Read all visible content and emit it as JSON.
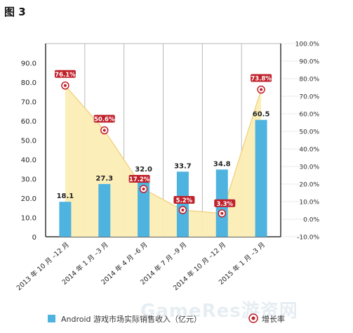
{
  "figure_label": "图 3",
  "watermark": "GameRes游资网",
  "colors": {
    "bar": "#4fb3e0",
    "area_fill": "#fbedb5",
    "area_line": "#f0cf7a",
    "rate_label_bg": "#c0202a",
    "marker": "#c0202a"
  },
  "chart_data": {
    "type": "bar",
    "title": "",
    "categories": [
      "2013 年 10 月 –12 月",
      "2014 年 1 月 –3 月",
      "2014 年 4 月 –6 月",
      "2014 年 7 月 –9 月",
      "2014 年 10 月 –12 月",
      "2015 年 1 月 –3 月"
    ],
    "series": [
      {
        "name": "Android 游戏市场实际销售收入（亿元）",
        "type": "bar",
        "axis": "left",
        "values": [
          18.1,
          27.3,
          32.0,
          33.7,
          34.8,
          60.5
        ],
        "labels": [
          "18.1",
          "27.3",
          "32.0",
          "33.7",
          "34.8",
          "60.5"
        ]
      },
      {
        "name": "增长率",
        "type": "area-line",
        "axis": "right",
        "values": [
          76.1,
          50.6,
          17.2,
          5.2,
          3.3,
          73.8
        ],
        "labels": [
          "76.1%",
          "50.6%",
          "17.2%",
          "5.2%",
          "3.3%",
          "73.8%"
        ]
      }
    ],
    "y_left": {
      "ylim": [
        0,
        100
      ],
      "ticks": [
        "0",
        "10.0",
        "20.0",
        "30.0",
        "40.0",
        "50.0",
        "60.0",
        "70.0",
        "80.0",
        "90.0"
      ]
    },
    "y_right": {
      "ylim": [
        -10,
        100
      ],
      "ticks": [
        "-10.0%",
        "0.0%",
        "10.0%",
        "20.0%",
        "30.0%",
        "40.0%",
        "50.0%",
        "60.0%",
        "70.0%",
        "80.0%",
        "90.0%",
        "100.0%"
      ]
    },
    "grid": true,
    "legend": "bottom"
  }
}
